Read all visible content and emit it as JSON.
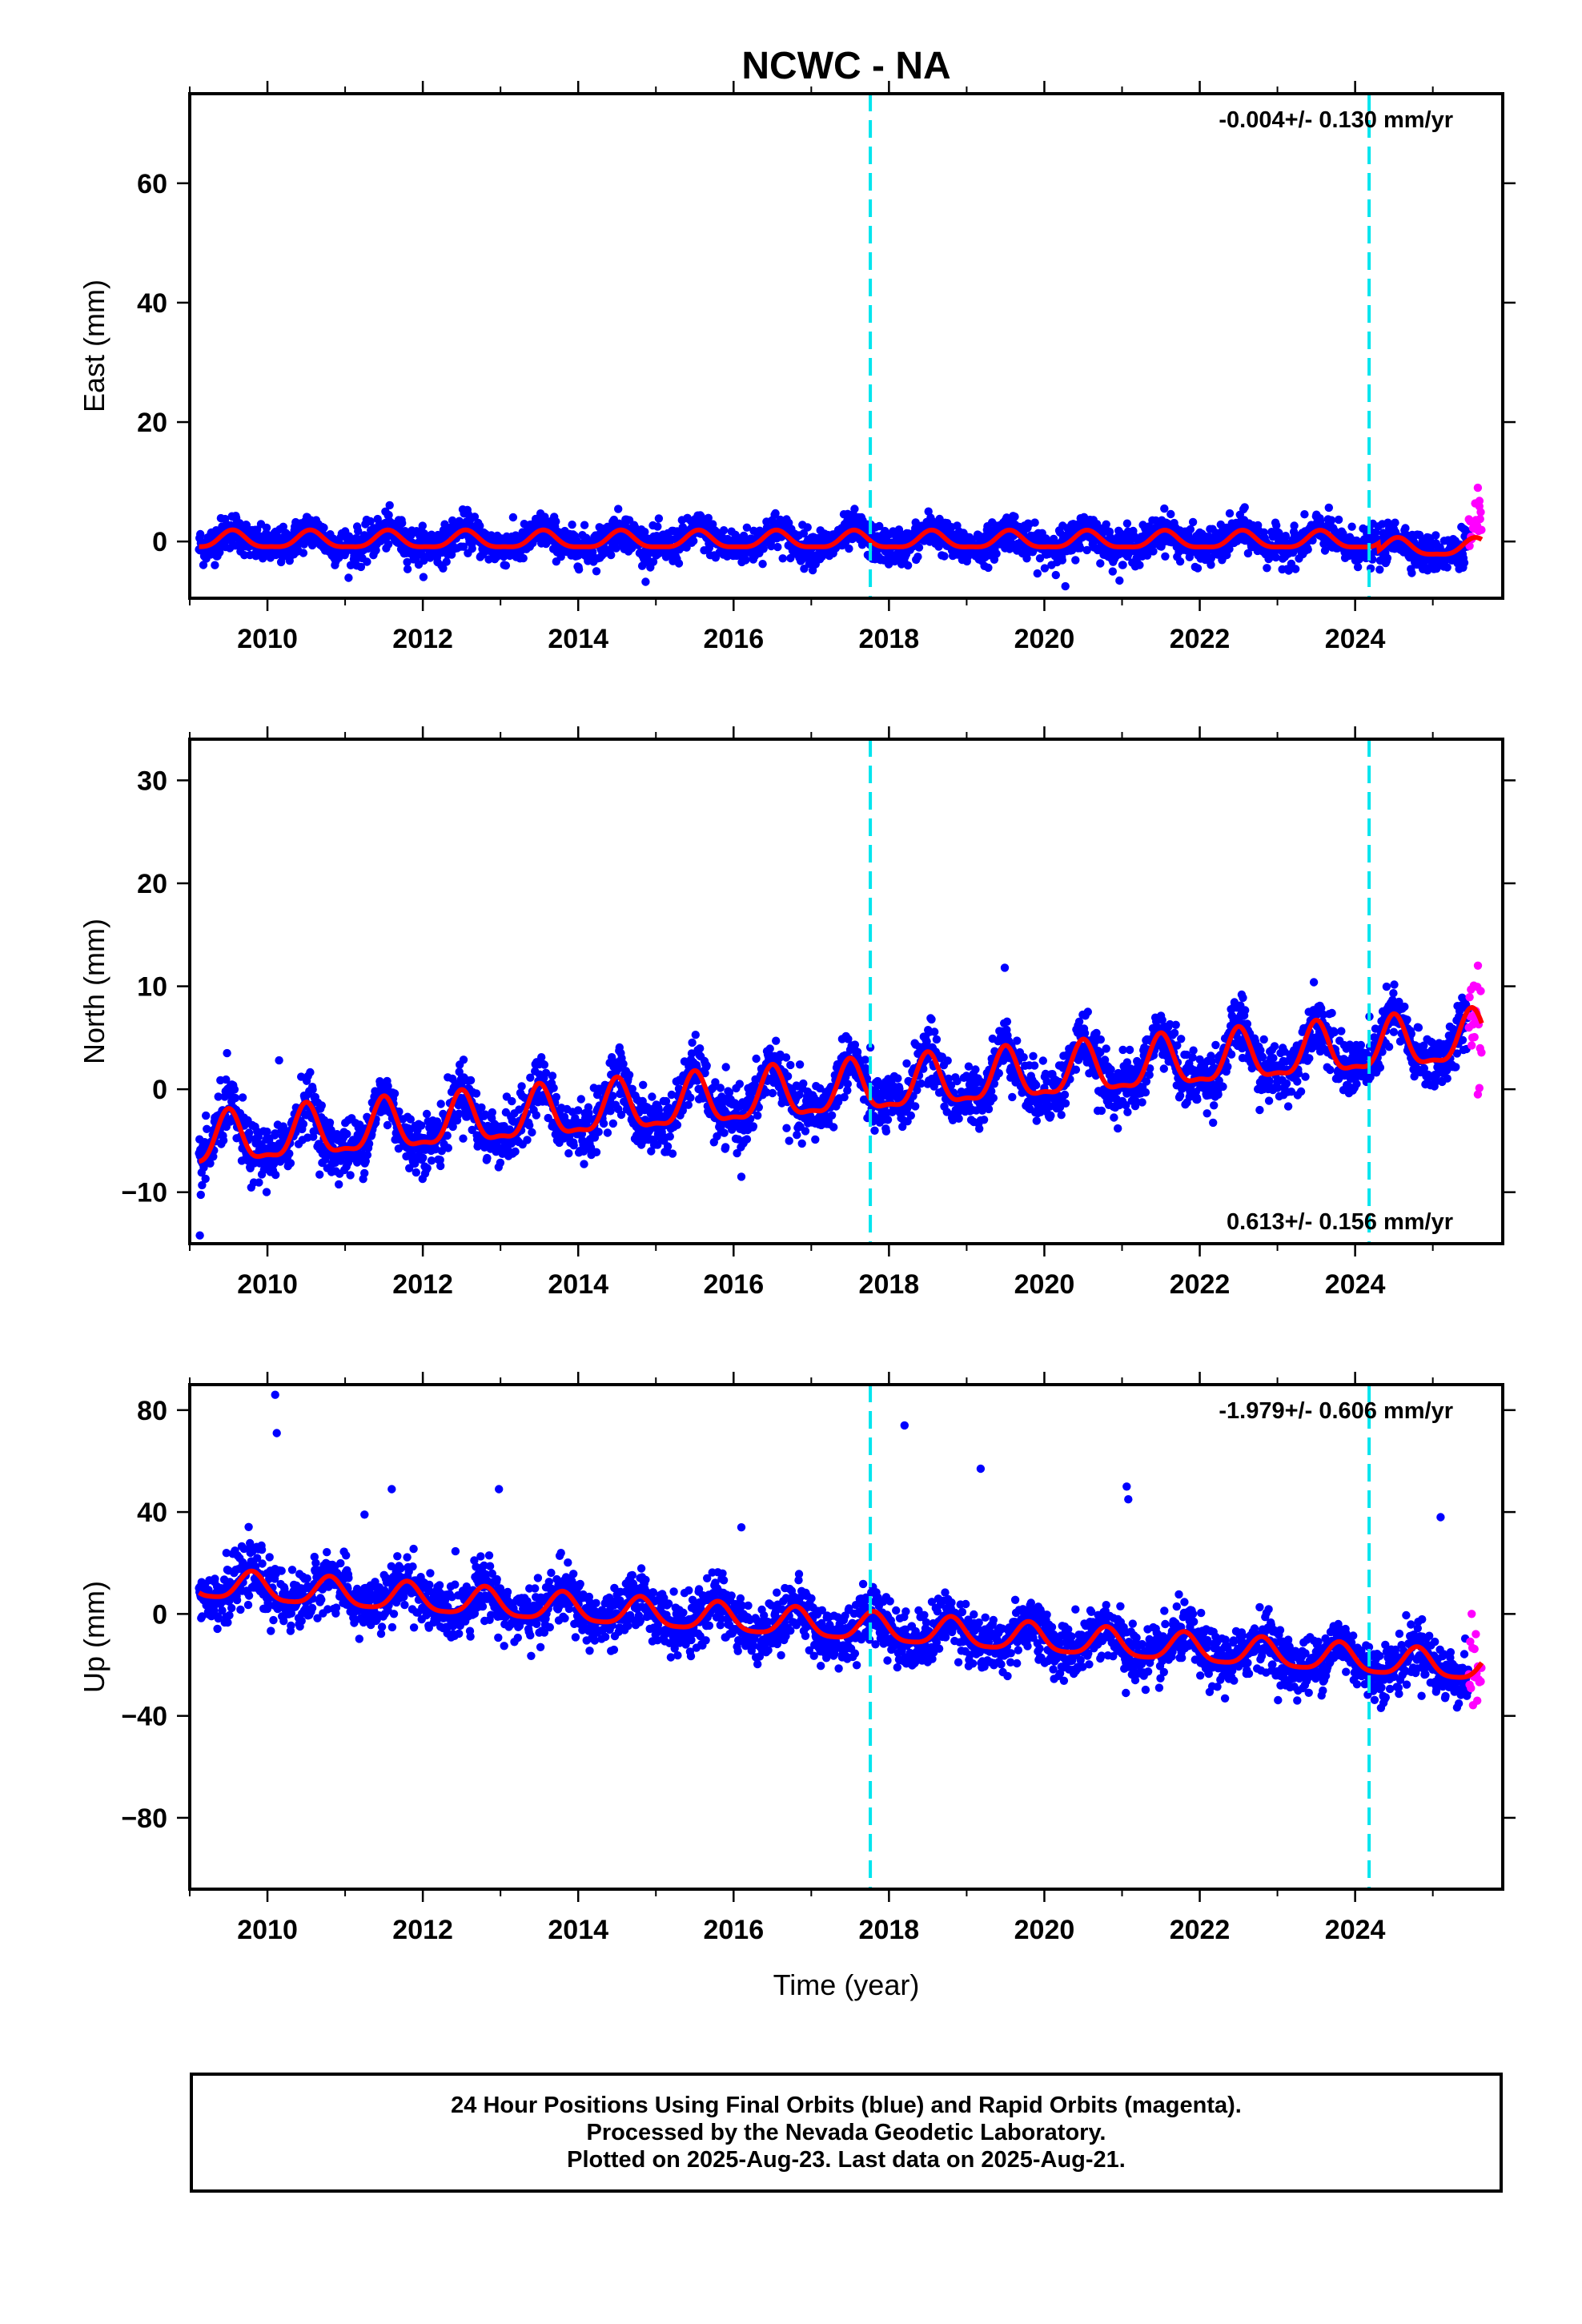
{
  "title": "NCWC - NA",
  "footer": {
    "line1": "24 Hour Positions Using Final Orbits (blue) and Rapid Orbits (magenta).",
    "line2": "Processed by the Nevada Geodetic Laboratory.",
    "line3": "Plotted on 2025-Aug-23. Last data on 2025-Aug-21."
  },
  "colors": {
    "final_orbits": "#0000ff",
    "rapid_orbits": "#ff00ff",
    "model_fit": "#ff0000",
    "event_lines": "#00e5ee",
    "frame": "#000000"
  },
  "chart_data": [
    {
      "type": "scatter",
      "ylabel": "East (mm)",
      "xlabel": "",
      "xlim": [
        2009.0,
        2025.9
      ],
      "ylim": [
        -9.5,
        75
      ],
      "x_ticks": [
        2010,
        2012,
        2014,
        2016,
        2018,
        2020,
        2022,
        2024
      ],
      "y_ticks": [
        0,
        20,
        40,
        60
      ],
      "rate_label": "-0.004+/- 0.130 mm/yr",
      "rate_position": "top-right",
      "vertical_event_lines": [
        2017.76,
        2024.18
      ],
      "data_start": 2009.12,
      "final_end": 2025.46,
      "rapid_end": 2025.63,
      "model": {
        "offset": 0.15,
        "rate": -0.004,
        "amp_annual": 1.4,
        "phase_peak": 0.55,
        "amp_semiannual": 0.4,
        "scatter": 1.5,
        "late_drop": -1.2
      },
      "outliers": [
        [
          2020.27,
          -7.5
        ],
        [
          2025.58,
          9.0
        ],
        [
          2025.6,
          6.8
        ]
      ],
      "series": [
        {
          "name": "Final Orbits (blue)",
          "color": "#0000ff"
        },
        {
          "name": "Rapid Orbits (magenta)",
          "color": "#ff00ff"
        }
      ]
    },
    {
      "type": "scatter",
      "ylabel": "North (mm)",
      "xlabel": "",
      "xlim": [
        2009.0,
        2025.9
      ],
      "ylim": [
        -15,
        34
      ],
      "x_ticks": [
        2010,
        2012,
        2014,
        2016,
        2018,
        2020,
        2022,
        2024
      ],
      "y_ticks": [
        -10,
        0,
        10,
        20,
        30
      ],
      "rate_label": "0.613+/- 0.156 mm/yr",
      "rate_position": "bottom-right",
      "vertical_event_lines": [
        2017.76,
        2024.18
      ],
      "data_start": 2009.12,
      "final_end": 2025.46,
      "rapid_end": 2025.63,
      "model": {
        "offset": -5.3,
        "rate": 0.613,
        "amp_annual": 2.4,
        "phase_peak": 0.5,
        "amp_semiannual": 0.8,
        "scatter": 1.4,
        "late_drop": 0
      },
      "outliers": [
        [
          2009.13,
          -14.2
        ],
        [
          2009.48,
          3.5
        ],
        [
          2010.15,
          2.8
        ],
        [
          2019.49,
          11.8
        ],
        [
          2016.1,
          -8.5
        ],
        [
          2025.58,
          -0.5
        ]
      ],
      "series": [
        {
          "name": "Final Orbits (blue)",
          "color": "#0000ff"
        },
        {
          "name": "Rapid Orbits (magenta)",
          "color": "#ff00ff"
        }
      ]
    },
    {
      "type": "scatter",
      "ylabel": "Up (mm)",
      "xlabel": "Time (year)",
      "xlim": [
        2009.0,
        2025.9
      ],
      "ylim": [
        -108,
        90
      ],
      "x_ticks": [
        2010,
        2012,
        2014,
        2016,
        2018,
        2020,
        2022,
        2024
      ],
      "y_ticks": [
        -80,
        -40,
        0,
        40,
        80
      ],
      "rate_label": "-1.979+/- 0.606 mm/yr",
      "rate_position": "top-right",
      "vertical_event_lines": [
        2017.76,
        2024.18
      ],
      "data_start": 2009.12,
      "final_end": 2025.46,
      "rapid_end": 2025.63,
      "model": {
        "offset": 11.5,
        "rate": -1.979,
        "amp_annual": 5.5,
        "phase_peak": 0.8,
        "amp_semiannual": 1.2,
        "scatter": 5.5,
        "late_drop": 0
      },
      "outliers": [
        [
          2010.1,
          86
        ],
        [
          2010.12,
          71
        ],
        [
          2011.6,
          49
        ],
        [
          2012.98,
          49
        ],
        [
          2011.25,
          39
        ],
        [
          2016.1,
          34
        ],
        [
          2018.2,
          74
        ],
        [
          2019.18,
          57
        ],
        [
          2021.06,
          50
        ],
        [
          2021.08,
          45
        ],
        [
          2021.05,
          -31
        ],
        [
          2025.1,
          38
        ]
      ],
      "series": [
        {
          "name": "Final Orbits (blue)",
          "color": "#0000ff"
        },
        {
          "name": "Rapid Orbits (magenta)",
          "color": "#ff00ff"
        }
      ]
    }
  ]
}
